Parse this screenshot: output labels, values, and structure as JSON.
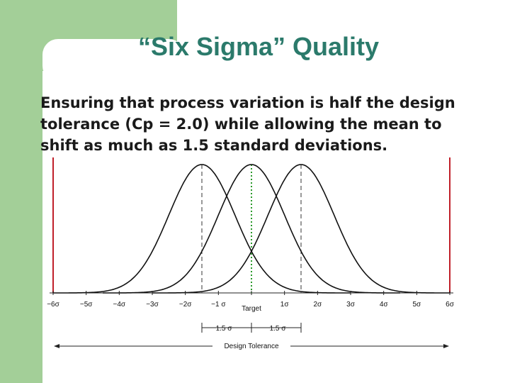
{
  "slide": {
    "title": "“Six Sigma” Quality",
    "body_lines": [
      "Ensuring that process variation is half the design",
      "tolerance (Cp = 2.0) while allowing the mean to",
      "shift as much as 1.5 standard deviations."
    ]
  },
  "figure": {
    "left_tick_labels": [
      "−6σ",
      "−5σ",
      "−4σ",
      "−3σ",
      "−2σ",
      "−1 σ"
    ],
    "right_tick_labels": [
      "1σ",
      "2σ",
      "3σ",
      "4σ",
      "5σ",
      "6σ"
    ],
    "target_label": "Target",
    "shift_labels": [
      "1.5 σ",
      "1.5 σ"
    ],
    "tolerance_label": "Design Tolerance"
  }
}
